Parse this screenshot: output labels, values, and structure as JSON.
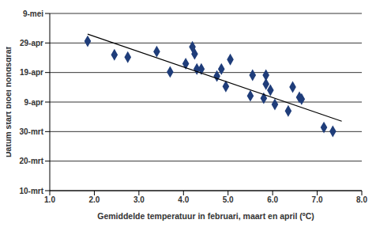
{
  "chart_data": {
    "type": "scatter",
    "x_label": "Gemiddelde temperatuur in februari, maart en april (ºC)",
    "y_label": "Datum start bloei hondsdraf",
    "xlim": [
      1,
      8
    ],
    "xticks": [
      {
        "value": 1,
        "label": "1.0"
      },
      {
        "value": 2,
        "label": "2.0"
      },
      {
        "value": 3,
        "label": "3.0"
      },
      {
        "value": 4,
        "label": "4.0"
      },
      {
        "value": 5,
        "label": "5.0"
      },
      {
        "value": 6,
        "label": "6.0"
      },
      {
        "value": 7,
        "label": "7.0"
      },
      {
        "value": 8,
        "label": "8.0"
      }
    ],
    "ylim": [
      69,
      129
    ],
    "yticks": [
      {
        "value": 69,
        "label": "10-mrt"
      },
      {
        "value": 79,
        "label": "20-mrt"
      },
      {
        "value": 89,
        "label": "30-mrt"
      },
      {
        "value": 99,
        "label": "9-apr"
      },
      {
        "value": 109,
        "label": "19-apr"
      },
      {
        "value": 119,
        "label": "29-apr"
      },
      {
        "value": 129,
        "label": "9-mei"
      }
    ],
    "grid": "y",
    "series": [
      {
        "type": "scatter",
        "marker": "diamond",
        "color": "#1f3d7a",
        "x": [
          1.85,
          2.45,
          2.75,
          3.4,
          3.7,
          4.05,
          4.2,
          4.25,
          4.3,
          4.4,
          4.75,
          4.85,
          4.95,
          5.05,
          5.5,
          5.55,
          5.8,
          5.85,
          5.85,
          5.95,
          6.05,
          6.35,
          6.45,
          6.6,
          6.65,
          7.15,
          7.35
        ],
        "values": [
          119.6,
          115,
          114.2,
          116.1,
          109.2,
          112,
          117.7,
          115.3,
          110.2,
          110.2,
          107.8,
          110.2,
          104.3,
          113.4,
          101.1,
          108.1,
          100.3,
          108.1,
          105.1,
          103,
          98.2,
          96,
          104.1,
          100.6,
          100,
          90.4,
          89.1
        ]
      },
      {
        "type": "line",
        "line_style": "solid",
        "color": "#000000",
        "x": [
          1.85,
          7.55
        ],
        "values": [
          122,
          92.5
        ]
      }
    ]
  }
}
